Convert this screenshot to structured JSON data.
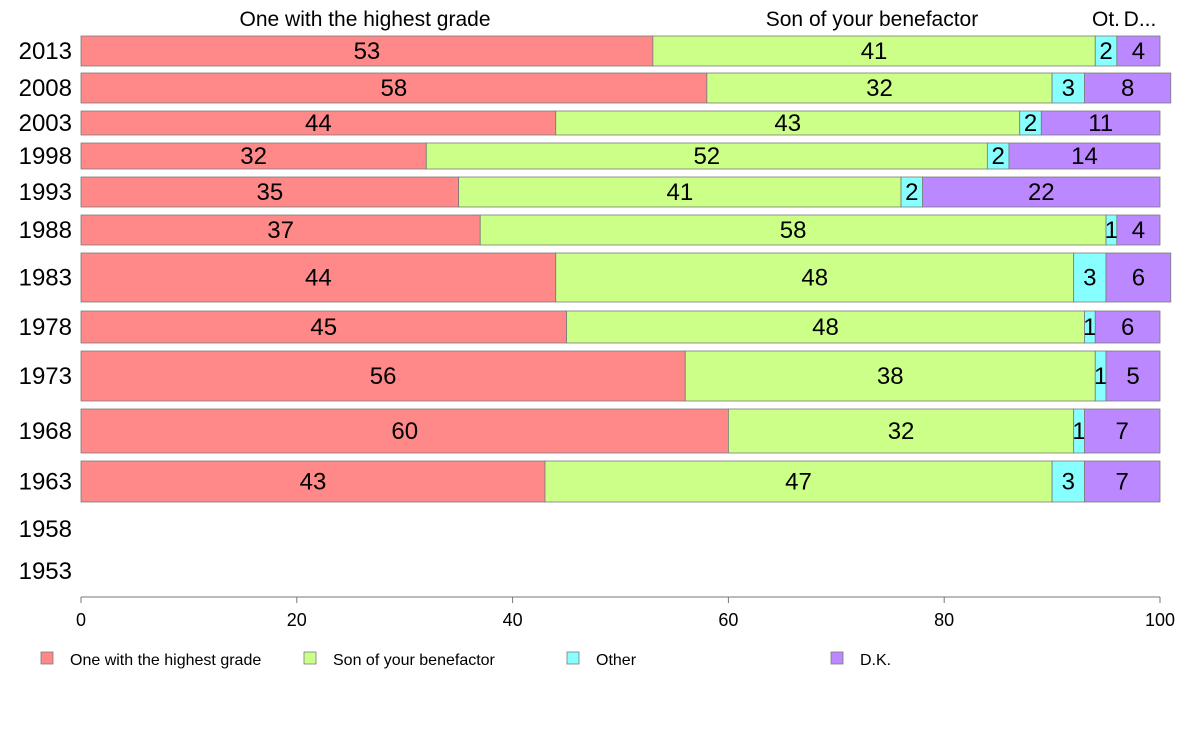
{
  "chart_data": {
    "type": "bar",
    "orientation": "horizontal",
    "stacked": true,
    "categories": [
      "2013",
      "2008",
      "2003",
      "1998",
      "1993",
      "1988",
      "1983",
      "1978",
      "1973",
      "1968",
      "1963",
      "1958",
      "1953"
    ],
    "series": [
      {
        "name": "One with the highest grade",
        "color": "#ff8888",
        "values": [
          53,
          58,
          44,
          32,
          35,
          37,
          44,
          45,
          56,
          60,
          43,
          null,
          null
        ]
      },
      {
        "name": "Son of your benefactor",
        "color": "#ccff88",
        "values": [
          41,
          32,
          43,
          52,
          41,
          58,
          48,
          48,
          38,
          32,
          47,
          null,
          null
        ]
      },
      {
        "name": "Other",
        "color": "#88ffff",
        "values": [
          2,
          3,
          2,
          2,
          2,
          1,
          3,
          1,
          1,
          1,
          3,
          null,
          null
        ]
      },
      {
        "name": "D.K.",
        "color": "#bb88ff",
        "values": [
          4,
          8,
          11,
          14,
          22,
          4,
          6,
          6,
          5,
          7,
          7,
          null,
          null
        ]
      }
    ],
    "column_headers": [
      "One with the highest grade",
      "Son of your benefactor",
      "Ot.",
      "D..."
    ],
    "xlim": [
      0,
      100
    ],
    "xticks": [
      0,
      20,
      40,
      60,
      80,
      100
    ],
    "grid": false,
    "legend_position": "bottom"
  }
}
